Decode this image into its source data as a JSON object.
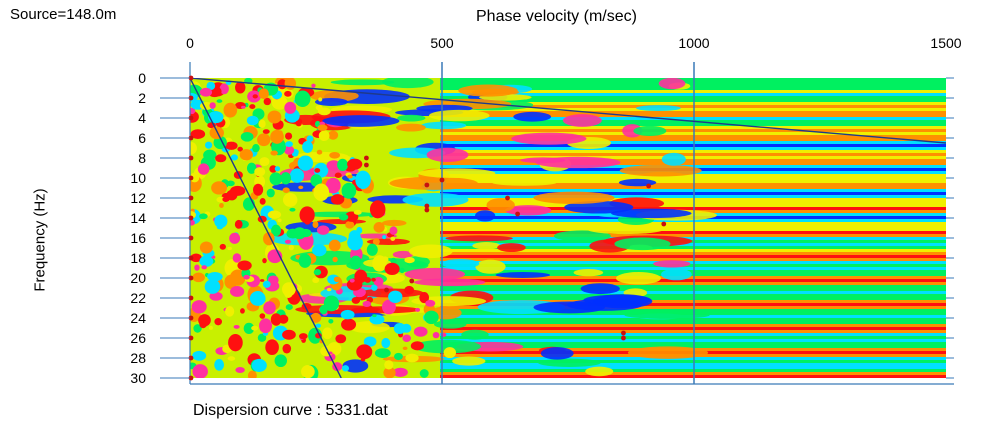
{
  "header": {
    "source": "Source=148.0m"
  },
  "footer": {
    "label": "Dispersion curve : 5331.dat"
  },
  "chart_data": {
    "type": "heatmap",
    "title": "",
    "xlabel": "Phase velocity (m/sec)",
    "ylabel": "Frequency (Hz)",
    "xlim": [
      0,
      1500
    ],
    "ylim": [
      0,
      30
    ],
    "y_inverted": true,
    "x_ticks": [
      0,
      500,
      1000,
      1500
    ],
    "y_ticks": [
      0,
      2,
      4,
      6,
      8,
      10,
      12,
      14,
      16,
      18,
      20,
      22,
      24,
      26,
      28,
      30
    ],
    "colormap": [
      "#0030ff",
      "#00e0ff",
      "#00f060",
      "#f0f000",
      "#ff9000",
      "#ff1010",
      "#ff30a0"
    ],
    "reference_lines": [
      {
        "from": [
          0,
          0
        ],
        "to": [
          1500,
          6.5
        ]
      },
      {
        "from": [
          0,
          0
        ],
        "to": [
          300,
          30
        ]
      }
    ],
    "picked_points": [
      {
        "x": 350,
        "y": 8.0
      },
      {
        "x": 350,
        "y": 8.7
      },
      {
        "x": 500,
        "y": 10.2
      },
      {
        "x": 470,
        "y": 10.7
      },
      {
        "x": 910,
        "y": 10.8
      },
      {
        "x": 630,
        "y": 12.0
      },
      {
        "x": 470,
        "y": 12.8
      },
      {
        "x": 470,
        "y": 13.2
      },
      {
        "x": 650,
        "y": 13.6
      },
      {
        "x": 940,
        "y": 14.6
      },
      {
        "x": 440,
        "y": 20.3
      },
      {
        "x": 390,
        "y": 21.2
      },
      {
        "x": 860,
        "y": 25.5
      },
      {
        "x": 860,
        "y": 26.0
      }
    ]
  }
}
